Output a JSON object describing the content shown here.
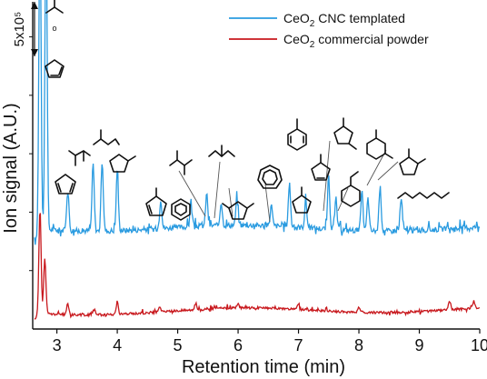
{
  "chart_data": {
    "type": "line",
    "xlabel": "Retention time (min)",
    "ylabel": "Ion signal (A.U.)",
    "xlim": [
      2.6,
      10
    ],
    "ylim": [
      0,
      5.6
    ],
    "x_ticks": [
      3,
      4,
      5,
      6,
      7,
      8,
      9,
      10
    ],
    "tick_labels": [
      "3",
      "4",
      "5",
      "6",
      "7",
      "8",
      "9",
      "10"
    ],
    "grid": false,
    "legend_position": "top-right",
    "scale_bar": {
      "label": "5x10⁵",
      "value": 5,
      "units": "ion signal"
    },
    "series": [
      {
        "name_parts": [
          "CeO",
          "2",
          " CNC templated"
        ],
        "color": "#2a9be0",
        "baseline": 1.72,
        "peaks": [
          [
            2.72,
            5.5
          ],
          [
            2.82,
            5.4
          ],
          [
            3.18,
            0.75
          ],
          [
            3.6,
            1.15
          ],
          [
            3.75,
            1.2
          ],
          [
            4.0,
            1.05
          ],
          [
            4.72,
            0.5
          ],
          [
            5.22,
            0.45
          ],
          [
            5.48,
            0.55
          ],
          [
            5.72,
            0.4
          ],
          [
            5.98,
            0.45
          ],
          [
            6.55,
            0.35
          ],
          [
            6.85,
            0.75
          ],
          [
            7.12,
            0.45
          ],
          [
            7.5,
            0.9
          ],
          [
            7.62,
            0.5
          ],
          [
            8.05,
            0.65
          ],
          [
            8.15,
            0.55
          ],
          [
            8.35,
            0.75
          ],
          [
            8.7,
            0.55
          ]
        ]
      },
      {
        "name_parts": [
          "CeO",
          "2",
          " commercial powder"
        ],
        "color": "#c8181d",
        "baseline": 0.28,
        "peaks": [
          [
            2.72,
            1.8
          ],
          [
            2.8,
            0.95
          ],
          [
            3.18,
            0.18
          ],
          [
            3.62,
            0.12
          ],
          [
            4.0,
            0.22
          ],
          [
            4.7,
            0.1
          ],
          [
            5.3,
            0.1
          ],
          [
            6.0,
            0.08
          ],
          [
            7.0,
            0.1
          ],
          [
            8.0,
            0.1
          ],
          [
            9.5,
            0.14
          ],
          [
            9.9,
            0.12
          ]
        ]
      }
    ]
  },
  "colors": {
    "axis": "#111111",
    "molecule_stroke": "#111111",
    "arrow": "#555555"
  },
  "molecule_icons": [
    "acetone-icon",
    "furan-icon",
    "cyclopentadiene-icon",
    "butanedione-icon",
    "pentanone-icon",
    "methylfuran-icon",
    "methylcyclopentadiene-icon",
    "benzene-icon",
    "methylbutanone-icon",
    "pentanone-2-icon",
    "dimethylfuran-icon",
    "cycloheptatriene-icon",
    "toluene-icon",
    "cyclopentanone-icon",
    "cyclopentenone-icon",
    "methylcyclopentanone-icon",
    "ethylbenzene-icon",
    "xylene-icon",
    "methylcyclopentenone-icon",
    "hexadiene-icon"
  ]
}
